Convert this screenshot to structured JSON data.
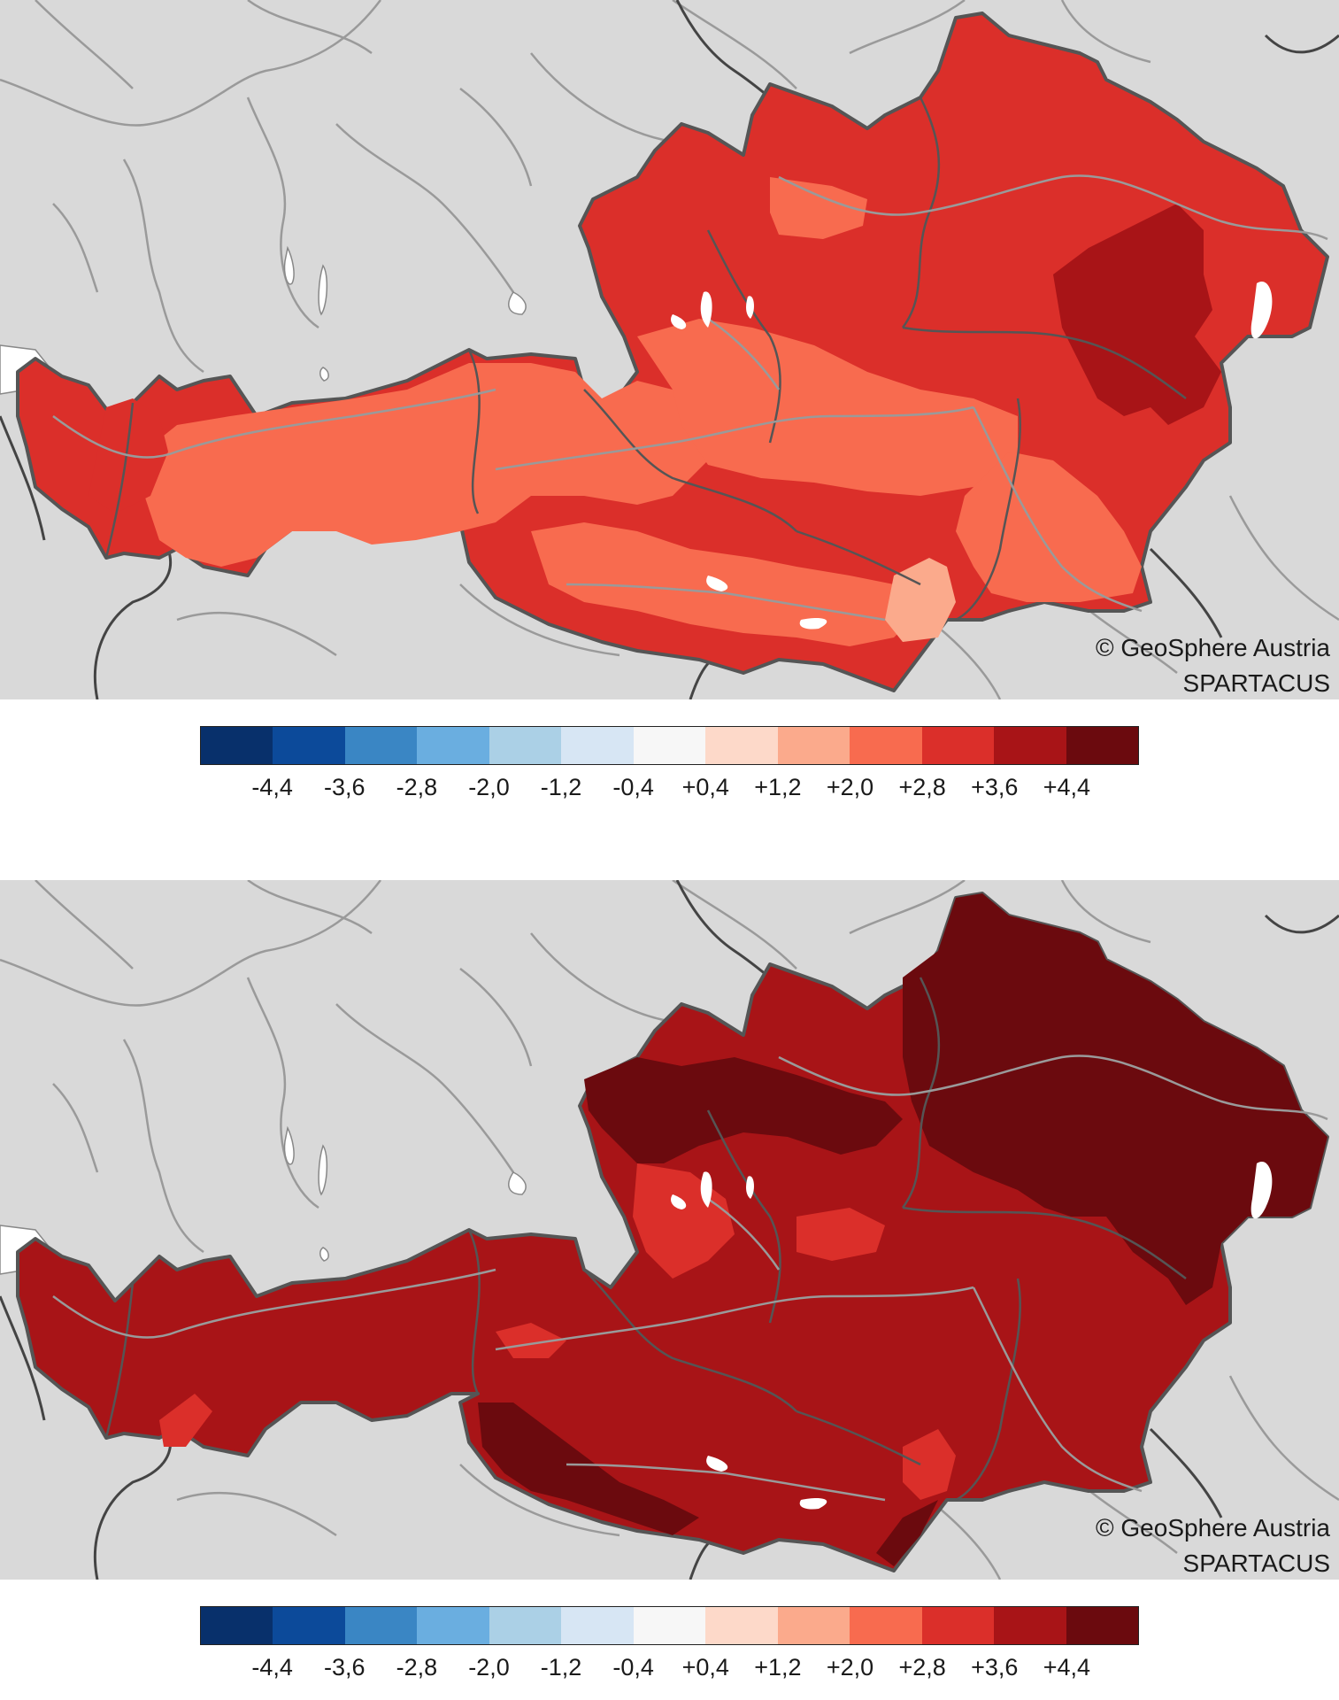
{
  "maps": [
    {
      "id": "top",
      "credit_line1": "© GeoSphere Austria",
      "credit_line2": "SPARTACUS"
    },
    {
      "id": "bottom",
      "credit_line1": "© GeoSphere Austria",
      "credit_line2": "SPARTACUS"
    }
  ],
  "legend": {
    "colors": [
      "#08306b",
      "#0c4a9a",
      "#3a86c4",
      "#6aaee0",
      "#abd0e6",
      "#d7e6f4",
      "#f7f7f7",
      "#fdd9c9",
      "#fbaa8c",
      "#f86b4f",
      "#db2f2a",
      "#a81417",
      "#6b0a0e"
    ],
    "ticks": [
      "-4,4",
      "-3,6",
      "-2,8",
      "-2,0",
      "-1,2",
      "-0,4",
      "+0,4",
      "+1,2",
      "+2,0",
      "+2,8",
      "+3,6",
      "+4,4"
    ]
  },
  "map_colors": {
    "background": "#d9d9d9",
    "rivers": "#9a9a9a",
    "borders": "#555555",
    "lakes": "#ffffff",
    "top_base": "#db2f2a",
    "top_mid": "#f86b4f",
    "top_light": "#fbaa8c",
    "top_dark": "#a81417",
    "bottom_base": "#a81417",
    "bottom_dark": "#6b0a0e",
    "bottom_light": "#db2f2a"
  }
}
